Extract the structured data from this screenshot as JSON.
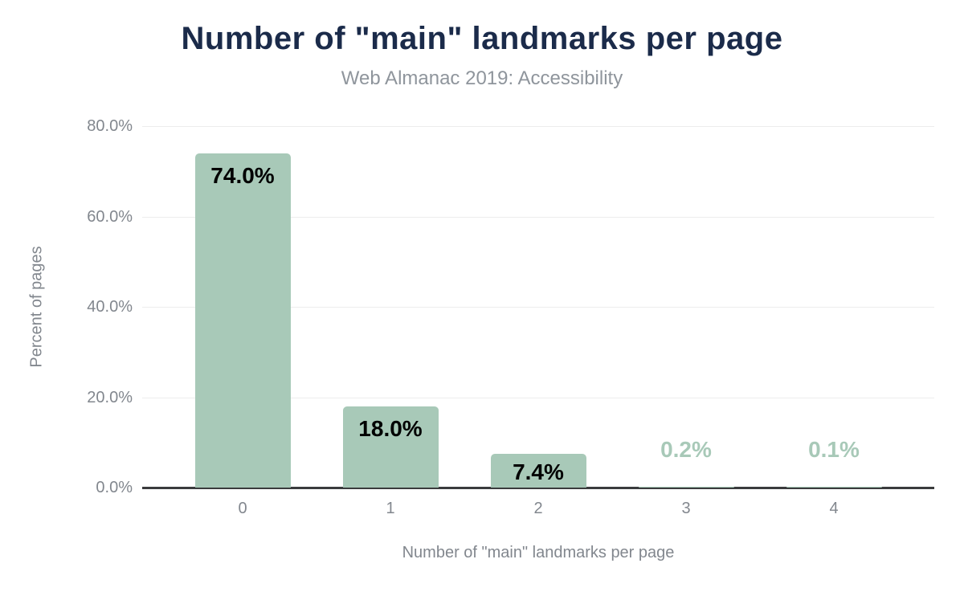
{
  "chart_data": {
    "type": "bar",
    "title": "Number of \"main\" landmarks per page",
    "subtitle": "Web Almanac 2019: Accessibility",
    "xlabel": "Number of \"main\" landmarks per page",
    "ylabel": "Percent of pages",
    "categories": [
      "0",
      "1",
      "2",
      "3",
      "4"
    ],
    "values": [
      74.0,
      18.0,
      7.4,
      0.2,
      0.1
    ],
    "value_labels": [
      "74.0%",
      "18.0%",
      "7.4%",
      "0.2%",
      "0.1%"
    ],
    "y_ticks": [
      "80.0%",
      "60.0%",
      "40.0%",
      "20.0%",
      "0.0%"
    ],
    "y_tick_values": [
      80,
      60,
      40,
      20,
      0
    ],
    "ylim": [
      0,
      80
    ],
    "grid": "horizontal",
    "legend": "none",
    "colors": {
      "background": "#ffffff",
      "bar": "#a8c9b8",
      "title": "#1b2b4a",
      "subtitle": "#8f959c",
      "axis_text": "#82878e",
      "gridline": "#ededed",
      "axis_line": "#3a3b3d",
      "label_inside": "#000000",
      "label_outside": "#a8c9b8"
    }
  }
}
